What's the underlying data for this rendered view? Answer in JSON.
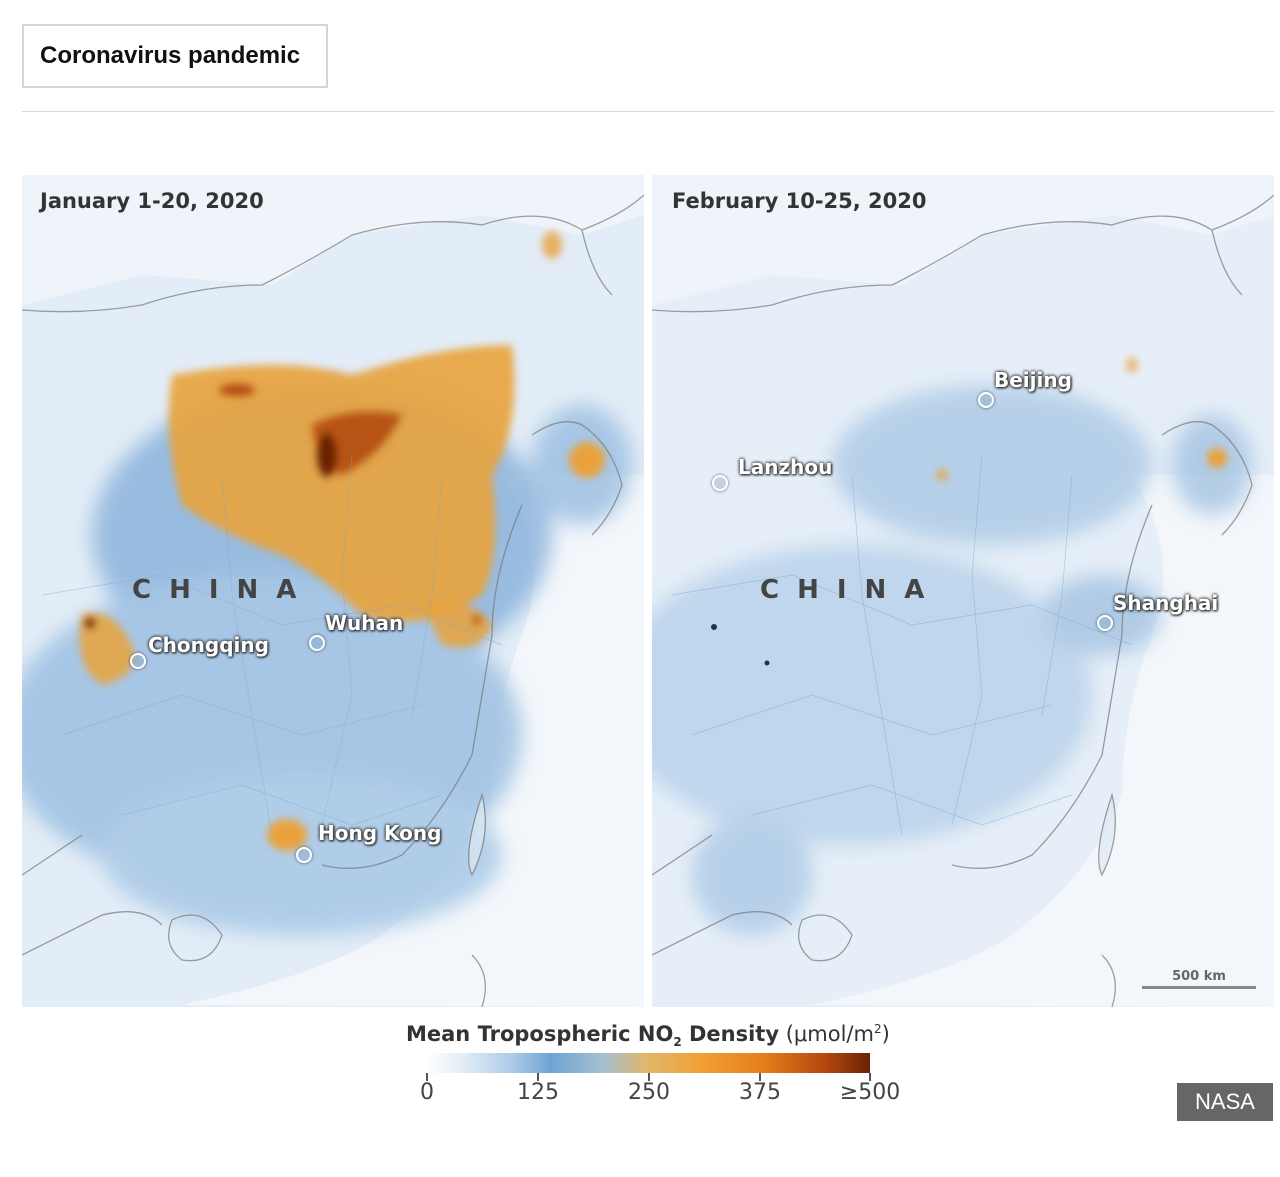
{
  "header": {
    "tag": "Coronavirus pandemic"
  },
  "maps": {
    "left": {
      "date": "January 1-20, 2020",
      "country": "CHINA",
      "cities": {
        "chongqing": "Chongqing",
        "wuhan": "Wuhan",
        "hong_kong": "Hong Kong"
      }
    },
    "right": {
      "date": "February 10-25, 2020",
      "country": "CHINA",
      "cities": {
        "beijing": "Beijing",
        "lanzhou": "Lanzhou",
        "shanghai": "Shanghai"
      },
      "scale_label": "500 km"
    }
  },
  "legend": {
    "title_main": "Mean Tropospheric NO",
    "title_sub": "2",
    "title_rest": " Density",
    "unit_prefix": "(μmol/m",
    "unit_sup": "2",
    "unit_suffix": ")",
    "ticks": [
      "0",
      "125",
      "250",
      "375",
      "≥500"
    ]
  },
  "colors": {
    "low": "#ffffff",
    "mid_low": "#6fa4d2",
    "mid": "#f0a032",
    "high": "#6a2306"
  },
  "credit": "NASA"
}
